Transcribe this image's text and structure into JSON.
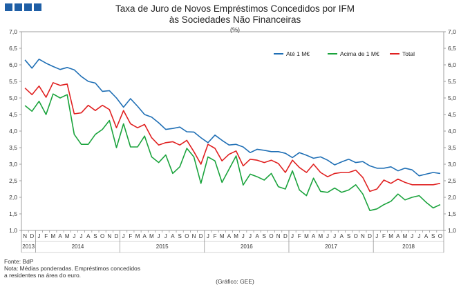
{
  "chart_data": {
    "type": "line",
    "title_line1": "Taxa de Juro de Novos Empréstimos Concedidos por IFM",
    "title_line2": "às Sociedades Não Financeiras",
    "unit": "(%)",
    "ylim": [
      1.0,
      7.0
    ],
    "y_ticks": [
      "1,0",
      "1,5",
      "2,0",
      "2,5",
      "3,0",
      "3,5",
      "4,0",
      "4,5",
      "5,0",
      "5,5",
      "6,0",
      "6,5",
      "7,0"
    ],
    "month_labels": [
      "N",
      "D",
      "J",
      "F",
      "M",
      "A",
      "M",
      "J",
      "J",
      "A",
      "S",
      "O",
      "N",
      "D",
      "J",
      "F",
      "M",
      "A",
      "M",
      "J",
      "J",
      "A",
      "S",
      "O",
      "N",
      "D",
      "J",
      "F",
      "M",
      "A",
      "M",
      "J",
      "J",
      "A",
      "S",
      "O",
      "N",
      "D",
      "J",
      "F",
      "M",
      "A",
      "M",
      "J",
      "J",
      "A",
      "S",
      "O",
      "N",
      "D",
      "J",
      "F",
      "M",
      "A",
      "M",
      "J",
      "J",
      "A",
      "S",
      "O"
    ],
    "years": [
      {
        "label": "2013",
        "start": 0,
        "end": 2
      },
      {
        "label": "2014",
        "start": 2,
        "end": 14
      },
      {
        "label": "2015",
        "start": 14,
        "end": 26
      },
      {
        "label": "2016",
        "start": 26,
        "end": 38
      },
      {
        "label": "2017",
        "start": 38,
        "end": 50
      },
      {
        "label": "2018",
        "start": 50,
        "end": 60
      }
    ],
    "series": [
      {
        "name": "Até 1 M€",
        "color": "#1f6fb5",
        "values": [
          6.15,
          5.9,
          6.17,
          6.05,
          5.95,
          5.86,
          5.92,
          5.85,
          5.65,
          5.5,
          5.45,
          5.2,
          5.22,
          5.0,
          4.72,
          4.98,
          4.75,
          4.5,
          4.42,
          4.25,
          4.05,
          4.08,
          4.12,
          3.98,
          3.97,
          3.8,
          3.65,
          3.88,
          3.72,
          3.58,
          3.6,
          3.52,
          3.35,
          3.45,
          3.42,
          3.38,
          3.38,
          3.33,
          3.2,
          3.35,
          3.27,
          3.18,
          3.22,
          3.12,
          2.98,
          3.07,
          3.15,
          3.05,
          3.08,
          2.95,
          2.88,
          2.88,
          2.92,
          2.8,
          2.88,
          2.83,
          2.65,
          2.7,
          2.75,
          2.72
        ]
      },
      {
        "name": "Acima de 1 M€",
        "color": "#1aa33c",
        "values": [
          4.77,
          4.6,
          4.9,
          4.5,
          5.12,
          5.0,
          5.1,
          3.9,
          3.6,
          3.6,
          3.9,
          4.05,
          4.32,
          3.5,
          4.22,
          3.52,
          3.52,
          3.85,
          3.22,
          3.05,
          3.28,
          2.72,
          2.92,
          3.48,
          3.22,
          2.42,
          3.22,
          3.1,
          2.45,
          2.85,
          3.25,
          2.37,
          2.7,
          2.62,
          2.52,
          2.72,
          2.32,
          2.25,
          2.8,
          2.22,
          2.05,
          2.58,
          2.18,
          2.15,
          2.28,
          2.15,
          2.22,
          2.38,
          2.1,
          1.6,
          1.65,
          1.78,
          1.88,
          2.1,
          1.92,
          2.0,
          2.05,
          1.85,
          1.68,
          1.78
        ]
      },
      {
        "name": "Total",
        "color": "#e02020",
        "values": [
          5.3,
          5.1,
          5.36,
          5.02,
          5.46,
          5.38,
          5.42,
          4.52,
          4.55,
          4.78,
          4.62,
          4.78,
          4.65,
          4.1,
          4.62,
          4.22,
          4.1,
          4.2,
          3.8,
          3.58,
          3.65,
          3.68,
          3.58,
          3.72,
          3.38,
          3.0,
          3.6,
          3.48,
          3.1,
          3.3,
          3.4,
          2.95,
          3.15,
          3.12,
          3.05,
          3.12,
          3.02,
          2.75,
          3.12,
          2.9,
          2.75,
          3.0,
          2.75,
          2.62,
          2.72,
          2.75,
          2.75,
          2.82,
          2.6,
          2.18,
          2.25,
          2.52,
          2.42,
          2.55,
          2.45,
          2.38,
          2.38,
          2.38,
          2.38,
          2.42
        ]
      }
    ]
  },
  "source_note": "Fonte: BdP",
  "note_line1": "Nota: Médias ponderadas.  Empréstimos concedidos",
  "note_line2": "a residentes na área do euro.",
  "credit": "(Gráfico: GEE)"
}
